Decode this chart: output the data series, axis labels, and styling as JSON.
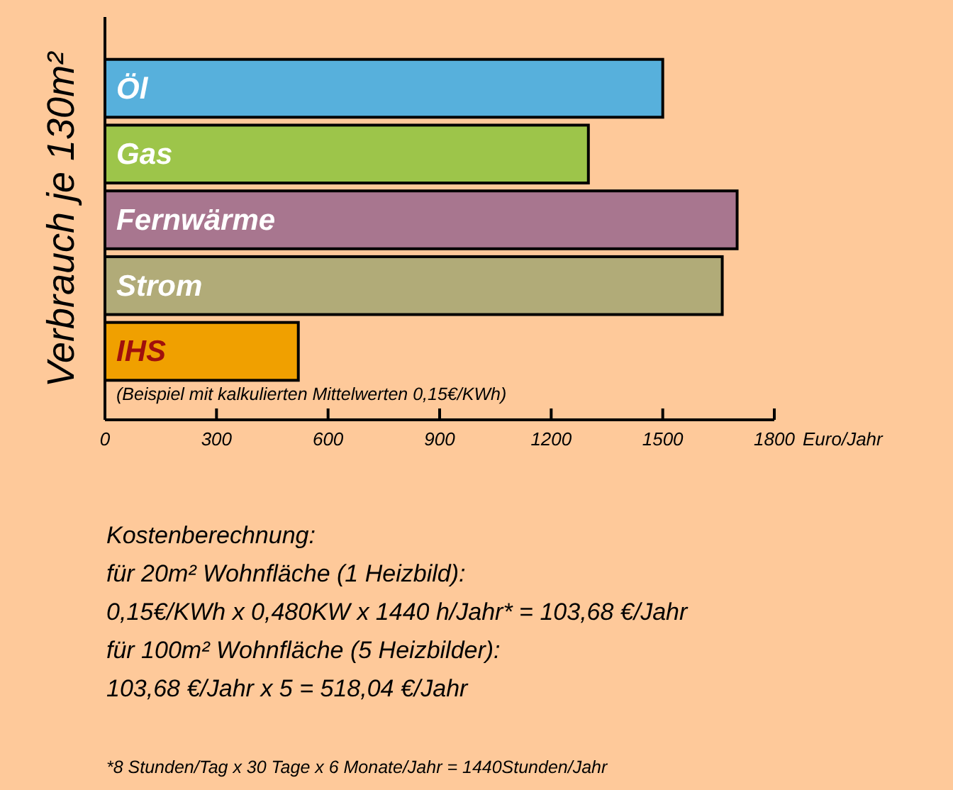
{
  "chart_data": {
    "type": "bar",
    "orientation": "horizontal",
    "ylabel": "Verbrauch je 130m²",
    "xlabel": "Euro/Jahr",
    "categories": [
      "Öl",
      "Gas",
      "Fernwärme",
      "Strom",
      "IHS"
    ],
    "values": [
      1500,
      1300,
      1700,
      1660,
      520
    ],
    "colors": [
      "#57b0dc",
      "#9dc54a",
      "#a8768f",
      "#b1ab78",
      "#f0a000"
    ],
    "xlim": [
      0,
      1800
    ],
    "xticks": [
      0,
      300,
      600,
      900,
      1200,
      1500,
      1800
    ],
    "annotations": [
      "(Beispiel mit kalkulierten Mittelwerten 0,15€/KWh)",
      "Kostenberechnung:",
      "für 20m² Wohnfläche (1 Heizbild):",
      "0,15€/KWh x 0,480KW x 1440 h/Jahr* = 103,68 €/Jahr",
      "für 100m² Wohnfläche (5 Heizbilder):",
      "103,68 €/Jahr x 5 = 518,04 €/Jahr",
      "*8 Stunden/Tag x 30 Tage x 6 Monate/Jahr = 1440Stunden/Jahr"
    ]
  }
}
